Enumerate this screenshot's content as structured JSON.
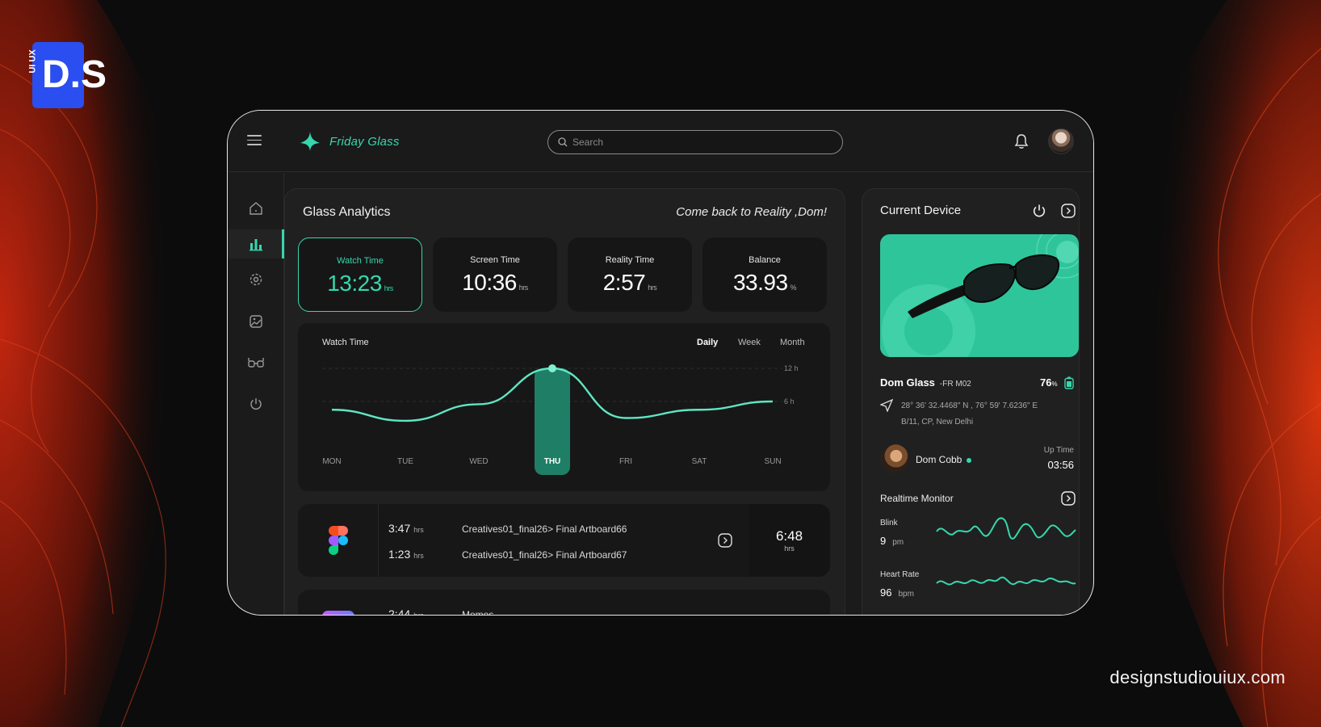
{
  "page": {
    "watermark_logo": "D.S",
    "logo_side_text": "UI UX",
    "footer_url": "designstudiouiux.com"
  },
  "header": {
    "app_name": "Friday Glass",
    "search_placeholder": "Search"
  },
  "sidebar": {
    "items": [
      {
        "name": "home",
        "icon": "home-icon"
      },
      {
        "name": "analytics",
        "icon": "bar-chart-icon",
        "active": true
      },
      {
        "name": "settings",
        "icon": "gear-icon"
      },
      {
        "name": "gallery",
        "icon": "image-icon"
      },
      {
        "name": "devices",
        "icon": "glasses-icon"
      },
      {
        "name": "power",
        "icon": "power-icon"
      }
    ]
  },
  "analytics": {
    "title": "Glass Analytics",
    "greeting": "Come back to Reality ,Dom!",
    "stats": [
      {
        "label": "Watch Time",
        "value": "13:23",
        "unit": "hrs"
      },
      {
        "label": "Screen Time",
        "value": "10:36",
        "unit": "hrs"
      },
      {
        "label": "Reality Time",
        "value": "2:57",
        "unit": "hrs"
      },
      {
        "label": "Balance",
        "value": "33.93",
        "unit": "%"
      }
    ],
    "chart_title": "Watch Time",
    "ranges": [
      "Daily",
      "Week",
      "Month"
    ],
    "sessions": [
      {
        "time1": "3:47",
        "unit1": "hrs",
        "name1": "Creatives01_final26> Final Artboard66",
        "time2": "1:23",
        "unit2": "hrs",
        "name2": "Creatives01_final26> Final Artboard67",
        "total": "6:48",
        "total_unit": "hrs"
      },
      {
        "time1": "2:44",
        "unit1": "hrs",
        "name1": "Memos"
      }
    ]
  },
  "chart_data": {
    "type": "line",
    "title": "Watch Time",
    "categories": [
      "MON",
      "TUE",
      "WED",
      "THU",
      "FRI",
      "SAT",
      "SUN"
    ],
    "highlight": "THU",
    "y_ticks": [
      "6 h",
      "12 h"
    ],
    "ylim": [
      0,
      12
    ],
    "grid": true,
    "series": [
      {
        "values": [
          4.5,
          2.5,
          5.5,
          12,
          3,
          4.5,
          6
        ]
      }
    ]
  },
  "device": {
    "title": "Current Device",
    "name": "Dom Glass",
    "model": "-FR M02",
    "battery": "76",
    "battery_unit": "%",
    "coords": "28° 36' 32.4468\" N , 76° 59' 7.6236\" E",
    "address": "B/11, CP, New Delhi",
    "user": "Dom Cobb",
    "uptime_label": "Up Time",
    "uptime": "03:56",
    "monitor_title": "Realtime Monitor",
    "blink_label": "Blink",
    "blink_value": "9",
    "blink_unit": "pm",
    "heart_label": "Heart Rate",
    "heart_value": "96",
    "heart_unit": "bpm"
  },
  "colors": {
    "accent": "#37d7ad",
    "background": "#0c0c0c",
    "panel": "#202020"
  }
}
